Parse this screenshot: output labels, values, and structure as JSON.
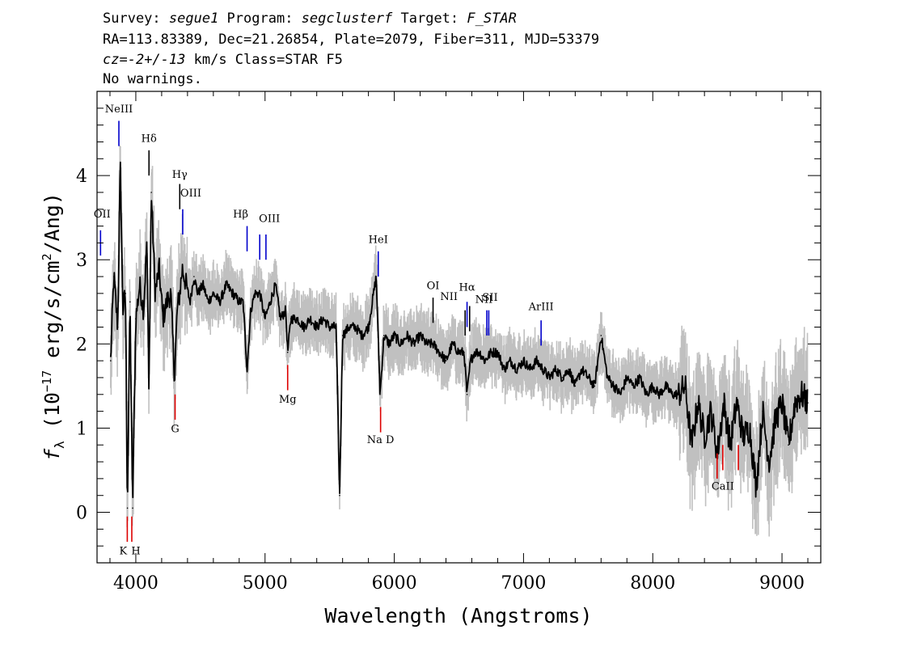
{
  "header": {
    "line1": {
      "survey_label": "Survey:",
      "survey": "segue1",
      "program_label": "Program:",
      "program": "segclusterf",
      "target_label": "Target:",
      "target": "F_STAR"
    },
    "line2": "RA=113.83389, Dec=21.26854, Plate=2079, Fiber=311, MJD=53379",
    "line3": {
      "cz_label": "cz=",
      "cz": "-2+/-13",
      "rest": " km/s Class=STAR F5"
    },
    "line4": "No warnings."
  },
  "chart_data": {
    "type": "line",
    "xlabel": "Wavelength (Angstroms)",
    "ylabel": "f_λ (10^-17 erg/s/cm^2/Ang)",
    "ylabel_parts": {
      "f": "f",
      "lambda": "λ",
      "open": " (10",
      "exp1": "−17",
      "mid": " erg/s/cm",
      "exp2": "2",
      "close": "/Ang)"
    },
    "xlim": [
      3700,
      9300
    ],
    "ylim": [
      -0.6,
      5.0
    ],
    "xticks": [
      4000,
      5000,
      6000,
      7000,
      8000,
      9000
    ],
    "xtick_labels": [
      "4000",
      "5000",
      "6000",
      "7000",
      "8000",
      "9000"
    ],
    "yticks": [
      0,
      1,
      2,
      3,
      4
    ],
    "ytick_labels": [
      "0",
      "1",
      "2",
      "3",
      "4"
    ],
    "colors": {
      "flux": "#000000",
      "error_band": "#c0c0c0",
      "emission": "#0000cc",
      "absorption": "#dd0000",
      "generic": "#000000"
    },
    "series": [
      {
        "x": [
          3805,
          3830,
          3860,
          3880,
          3900,
          3920,
          3935,
          3955,
          3975,
          4000,
          4030,
          4060,
          4085,
          4102,
          4120,
          4150,
          4180,
          4210,
          4240,
          4270,
          4300,
          4320,
          4340,
          4360,
          4390,
          4420,
          4450,
          4480,
          4520,
          4560,
          4600,
          4650,
          4700,
          4750,
          4800,
          4830,
          4861,
          4890,
          4920,
          4960,
          5000,
          5040,
          5080,
          5120,
          5160,
          5175,
          5200,
          5250,
          5300,
          5350,
          5400,
          5450,
          5500,
          5550,
          5577,
          5600,
          5650,
          5700,
          5750,
          5800,
          5860,
          5890,
          5920,
          5960,
          6000,
          6050,
          6100,
          6150,
          6200,
          6250,
          6300,
          6350,
          6400,
          6450,
          6500,
          6540,
          6563,
          6590,
          6620,
          6660,
          6700,
          6750,
          6800,
          6850,
          6900,
          6950,
          7000,
          7050,
          7100,
          7150,
          7200,
          7250,
          7300,
          7350,
          7400,
          7450,
          7500,
          7550,
          7600,
          7650,
          7700,
          7750,
          7800,
          7850,
          7900,
          7950,
          8000,
          8050,
          8100,
          8150,
          8200,
          8250,
          8300,
          8350,
          8400,
          8450,
          8500,
          8550,
          8600,
          8650,
          8700,
          8750,
          8800,
          8850,
          8900,
          8950,
          9000,
          9050,
          9100,
          9150,
          9200
        ],
        "y": [
          1.8,
          2.8,
          2.2,
          4.15,
          2.4,
          2.6,
          0.05,
          2.5,
          0.05,
          2.3,
          2.7,
          2.4,
          3.2,
          1.5,
          3.8,
          2.6,
          2.9,
          2.3,
          2.5,
          2.6,
          1.6,
          2.4,
          2.6,
          2.9,
          2.7,
          2.5,
          2.8,
          2.6,
          2.7,
          2.5,
          2.6,
          2.5,
          2.7,
          2.6,
          2.5,
          2.5,
          1.7,
          2.4,
          2.6,
          2.6,
          2.3,
          2.5,
          2.7,
          2.3,
          2.4,
          1.9,
          2.3,
          2.3,
          2.2,
          2.3,
          2.2,
          2.3,
          2.2,
          2.2,
          0.2,
          2.1,
          2.2,
          2.2,
          2.1,
          2.2,
          2.8,
          1.4,
          2.1,
          2.0,
          2.1,
          2.0,
          2.1,
          2.0,
          2.1,
          2.0,
          2.0,
          1.9,
          1.8,
          2.0,
          1.9,
          1.9,
          1.4,
          1.8,
          1.9,
          1.9,
          1.8,
          1.9,
          1.9,
          1.7,
          1.8,
          1.7,
          1.8,
          1.7,
          1.8,
          1.7,
          1.6,
          1.7,
          1.6,
          1.7,
          1.5,
          1.7,
          1.6,
          1.5,
          2.1,
          1.6,
          1.5,
          1.4,
          1.6,
          1.5,
          1.6,
          1.4,
          1.5,
          1.4,
          1.5,
          1.4,
          1.4,
          1.5,
          0.8,
          1.3,
          0.9,
          1.2,
          0.7,
          1.3,
          0.8,
          1.3,
          0.9,
          1.0,
          0.3,
          1.2,
          0.6,
          1.1,
          1.3,
          0.8,
          1.3,
          1.4,
          1.3
        ]
      }
    ],
    "line_markers": [
      {
        "label": "NeIII",
        "x": 3869,
        "kind": "emission",
        "y_bottom": 4.35,
        "y_top": 4.65,
        "label_y": 4.75
      },
      {
        "label": "Hδ",
        "x": 4102,
        "kind": "generic",
        "y_bottom": 4.0,
        "y_top": 4.3,
        "label_y": 4.4
      },
      {
        "label": "Hγ",
        "x": 4340,
        "kind": "generic",
        "y_bottom": 3.6,
        "y_top": 3.9,
        "label_y": 3.97
      },
      {
        "label": "OIII",
        "x": 4363,
        "kind": "emission",
        "y_bottom": 3.3,
        "y_top": 3.6,
        "label_y": 3.75,
        "label_dx": 10
      },
      {
        "label": "OII",
        "x": 3727,
        "kind": "emission",
        "y_bottom": 3.05,
        "y_top": 3.35,
        "label_y": 3.5,
        "label_dx": 2
      },
      {
        "label": "Hβ",
        "x": 4861,
        "kind": "emission",
        "y_bottom": 3.1,
        "y_top": 3.4,
        "label_y": 3.5,
        "label_dx": -8
      },
      {
        "label": "OIII",
        "x": 4959,
        "kind": "emission",
        "y_bottom": 3.0,
        "y_top": 3.3,
        "label_y": 3.45,
        "label_dx": 12
      },
      {
        "label": "",
        "x": 5007,
        "kind": "emission",
        "y_bottom": 3.0,
        "y_top": 3.3
      },
      {
        "label": "HeI",
        "x": 5876,
        "kind": "emission",
        "y_bottom": 2.8,
        "y_top": 3.1,
        "label_y": 3.2,
        "label_dx": 0
      },
      {
        "label": "OI",
        "x": 6300,
        "kind": "generic",
        "y_bottom": 2.25,
        "y_top": 2.55,
        "label_y": 2.65
      },
      {
        "label": "NII",
        "x": 6548,
        "kind": "generic",
        "y_bottom": 2.1,
        "y_top": 2.4,
        "label_y": 2.52,
        "label_dx": -20
      },
      {
        "label": "Hα",
        "x": 6563,
        "kind": "emission",
        "y_bottom": 2.2,
        "y_top": 2.5,
        "label_y": 2.63,
        "label_dx": 0
      },
      {
        "label": "",
        "x": 6583,
        "kind": "generic",
        "y_bottom": 2.15,
        "y_top": 2.45
      },
      {
        "label": "SII",
        "x": 6716,
        "kind": "emission",
        "y_bottom": 2.1,
        "y_top": 2.4,
        "label_y": 2.51,
        "label_dx": 4
      },
      {
        "label": "NII",
        "x": 6731,
        "kind": "emission",
        "y_bottom": 2.1,
        "y_top": 2.4,
        "label_y": 2.49,
        "label_dx": -6
      },
      {
        "label": "ArIII",
        "x": 7136,
        "kind": "emission",
        "y_bottom": 1.98,
        "y_top": 2.28,
        "label_y": 2.4
      },
      {
        "label": "K",
        "x": 3934,
        "kind": "absorption",
        "y_bottom": -0.35,
        "y_top": -0.05,
        "label_y": -0.5,
        "label_dx": -5
      },
      {
        "label": "H",
        "x": 3969,
        "kind": "absorption",
        "y_bottom": -0.35,
        "y_top": -0.05,
        "label_y": -0.5,
        "label_dx": 5
      },
      {
        "label": "G",
        "x": 4304,
        "kind": "absorption",
        "y_bottom": 1.1,
        "y_top": 1.4,
        "label_y": 0.95
      },
      {
        "label": "Mg",
        "x": 5175,
        "kind": "absorption",
        "y_bottom": 1.45,
        "y_top": 1.75,
        "label_y": 1.3
      },
      {
        "label": "Na D",
        "x": 5894,
        "kind": "absorption",
        "y_bottom": 0.95,
        "y_top": 1.25,
        "label_y": 0.82
      },
      {
        "label": "",
        "x": 8498,
        "kind": "absorption",
        "y_bottom": 0.4,
        "y_top": 0.7
      },
      {
        "label": "CaII",
        "x": 8542,
        "kind": "absorption",
        "y_bottom": 0.5,
        "y_top": 0.8,
        "label_y": 0.27
      },
      {
        "label": "",
        "x": 8662,
        "kind": "absorption",
        "y_bottom": 0.5,
        "y_top": 0.8
      }
    ]
  }
}
